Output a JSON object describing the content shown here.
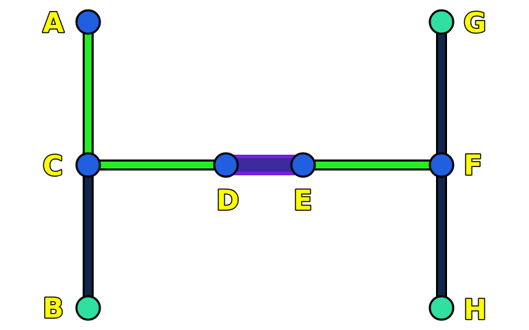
{
  "colors": {
    "background": "#ffffff",
    "label_fill": "#ffff00",
    "label_stroke": "#000000",
    "edge_green": "#22ee22",
    "edge_navy": "#10264d",
    "edge_purple_outer": "#7a1fe0",
    "edge_purple_inner": "#3b2a9e",
    "node_blue": "#1f5fe0",
    "node_teal": "#30e0a0"
  },
  "nodes": {
    "A": {
      "label": "A",
      "color": "node_blue"
    },
    "B": {
      "label": "B",
      "color": "node_teal"
    },
    "C": {
      "label": "C",
      "color": "node_blue"
    },
    "D": {
      "label": "D",
      "color": "node_blue"
    },
    "E": {
      "label": "E",
      "color": "node_blue"
    },
    "F": {
      "label": "F",
      "color": "node_blue"
    },
    "G": {
      "label": "G",
      "color": "node_teal"
    },
    "H": {
      "label": "H",
      "color": "node_teal"
    }
  },
  "edges": [
    {
      "from": "A",
      "to": "C",
      "style": "green"
    },
    {
      "from": "C",
      "to": "B",
      "style": "navy"
    },
    {
      "from": "C",
      "to": "D",
      "style": "green"
    },
    {
      "from": "D",
      "to": "E",
      "style": "purple"
    },
    {
      "from": "E",
      "to": "F",
      "style": "green"
    },
    {
      "from": "G",
      "to": "F",
      "style": "navy"
    },
    {
      "from": "F",
      "to": "H",
      "style": "navy"
    }
  ]
}
